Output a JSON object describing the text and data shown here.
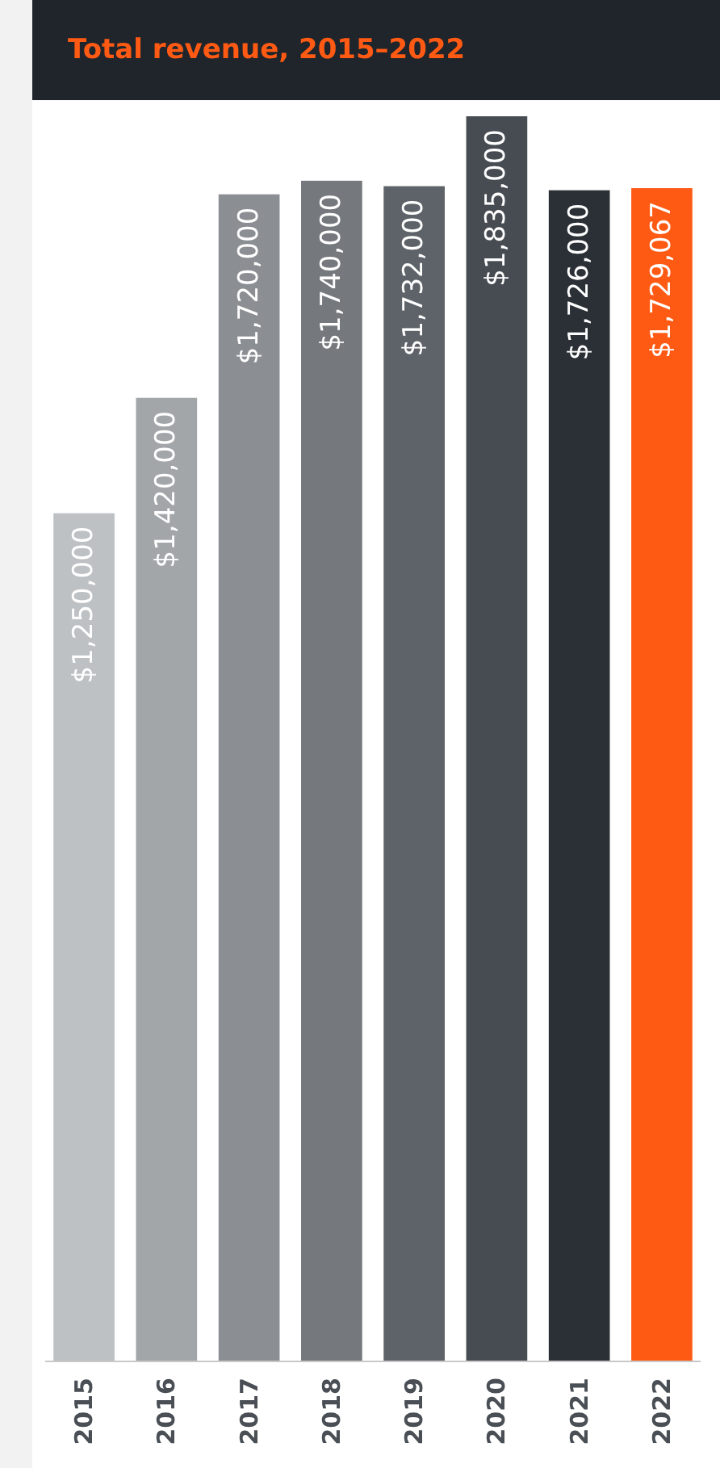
{
  "chart_data": {
    "type": "bar",
    "title": "Total revenue, 2015–2022",
    "categories": [
      "2015",
      "2016",
      "2017",
      "2018",
      "2019",
      "2020",
      "2021",
      "2022"
    ],
    "values": [
      1250000,
      1420000,
      1720000,
      1740000,
      1732000,
      1835000,
      1726000,
      1729067
    ],
    "colors": [
      "#bdc1c4",
      "#a2a6a9",
      "#8b8f93",
      "#75797e",
      "#5e6369",
      "#474c52",
      "#2b3036",
      "#ff5a14"
    ],
    "value_labels": [
      "$1,250,000",
      "$1,420,000",
      "$1,720,000",
      "$1,740,000",
      "$1,732,000",
      "$1,835,000",
      "$1,726,000",
      "$1,729,067"
    ]
  }
}
